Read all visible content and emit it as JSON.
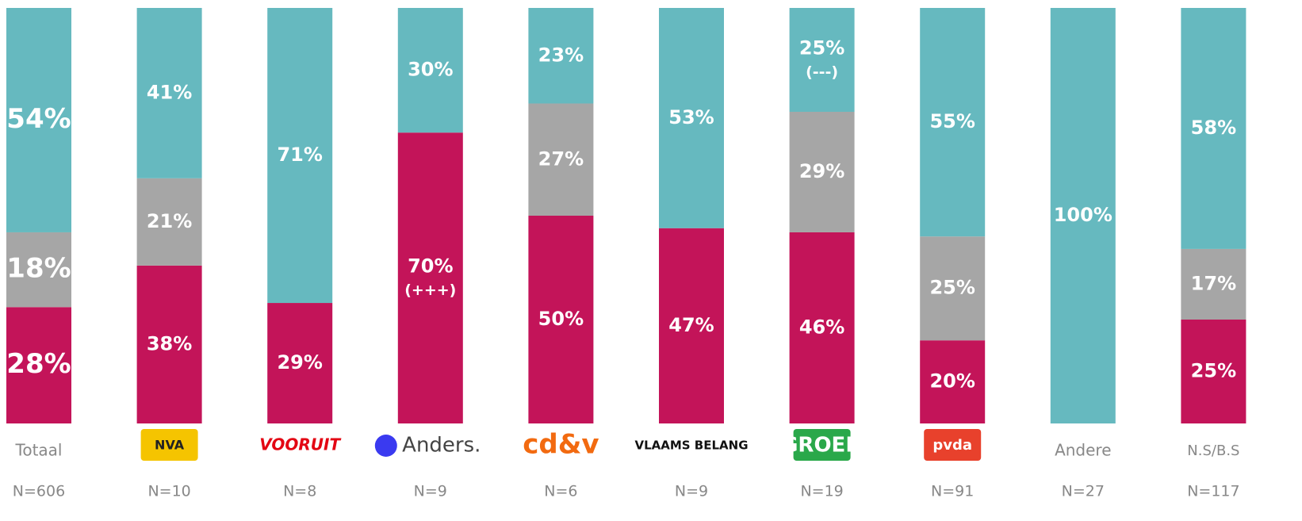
{
  "chart_data": {
    "type": "stacked_bar",
    "categories": [
      "Totaal",
      "NVA",
      "VOORUIT",
      "Anders.",
      "cd&v",
      "VLAAMS BELANG",
      "GROEN",
      "pvda",
      "Andere",
      "N.S/B.S"
    ],
    "sample_sizes": [
      "N=606",
      "N=10",
      "N=8",
      "N=9",
      "N=6",
      "N=9",
      "N=19",
      "N=91",
      "N=27",
      "N=117"
    ],
    "ylim": [
      0,
      100
    ],
    "series": [
      {
        "color": "#c31459",
        "values": [
          28,
          38,
          29,
          70,
          50,
          47,
          46,
          20,
          null,
          25
        ],
        "value_labels": [
          "28%",
          "38%",
          "29%",
          "70%",
          "50%",
          "47%",
          "46%",
          "20%",
          null,
          "25%"
        ],
        "annotations": [
          null,
          null,
          null,
          "(+++)",
          null,
          null,
          null,
          null,
          null,
          null
        ]
      },
      {
        "color": "#a6a6a6",
        "values": [
          18,
          21,
          null,
          null,
          27,
          null,
          29,
          25,
          null,
          17
        ],
        "value_labels": [
          "18%",
          "21%",
          null,
          null,
          "27%",
          null,
          "29%",
          "25%",
          null,
          "17%"
        ]
      },
      {
        "color": "#66b9bf",
        "values": [
          54,
          41,
          71,
          30,
          23,
          53,
          25,
          55,
          100,
          58
        ],
        "value_labels": [
          "54%",
          "41%",
          "71%",
          "30%",
          "23%",
          "53%",
          "25%",
          "55%",
          "100%",
          "58%"
        ],
        "annotations": [
          null,
          null,
          null,
          null,
          null,
          null,
          "(---)",
          null,
          null,
          null
        ]
      }
    ]
  }
}
